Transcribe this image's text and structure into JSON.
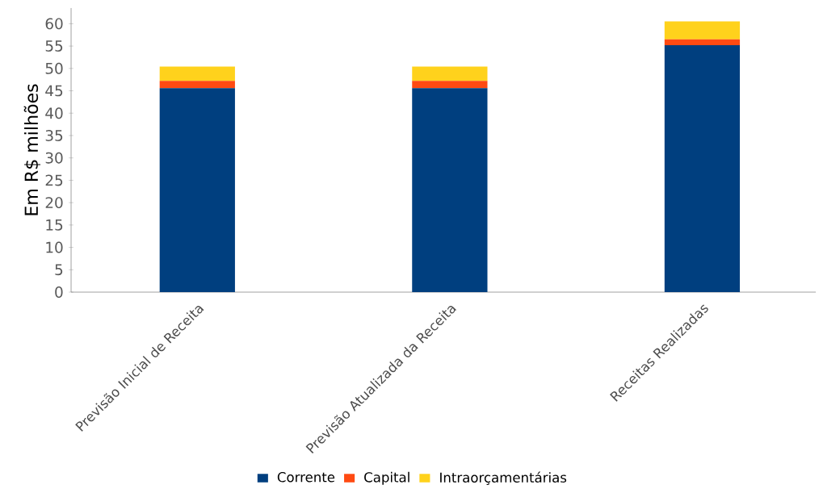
{
  "chart_data": {
    "type": "bar",
    "stacked": true,
    "ylabel": "Em R$ milhões",
    "categories": [
      "Previsão Inicial de Receita",
      "Previsão Atualizada da Receita",
      "Receitas Realizadas"
    ],
    "series": [
      {
        "name": "Corrente",
        "color": "#003f7f",
        "values": [
          45.6,
          45.6,
          55.2
        ]
      },
      {
        "name": "Capital",
        "color": "#ff4a12",
        "values": [
          1.6,
          1.6,
          1.3
        ]
      },
      {
        "name": "Intraorçamentárias",
        "color": "#ffd21c",
        "values": [
          3.2,
          3.2,
          4.0
        ]
      }
    ],
    "ylim": [
      0,
      63.5
    ],
    "yticks": [
      0,
      5,
      10,
      15,
      20,
      25,
      30,
      35,
      40,
      45,
      50,
      55,
      60
    ],
    "legend": "bottom"
  }
}
